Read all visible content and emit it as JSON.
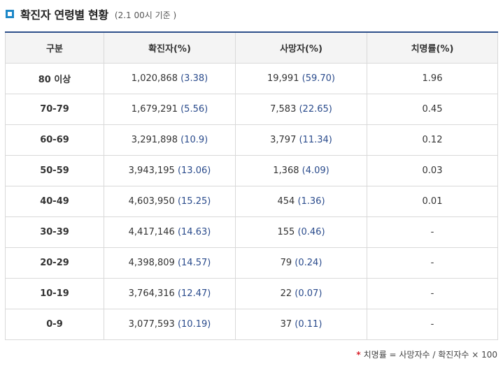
{
  "header": {
    "title": "확진자 연령별 현황",
    "subtitle": "(2.1 00시 기준 )",
    "icon": "square-bullet-icon",
    "icon_color": "#1e88c8"
  },
  "table": {
    "columns": [
      "구분",
      "확진자(%)",
      "사망자(%)",
      "치명률(%)"
    ],
    "rows": [
      {
        "age": "80 이상",
        "cases": "1,020,868",
        "cases_pct": "(3.38)",
        "deaths": "19,991",
        "deaths_pct": "(59.70)",
        "fatality": "1.96"
      },
      {
        "age": "70-79",
        "cases": "1,679,291",
        "cases_pct": "(5.56)",
        "deaths": "7,583",
        "deaths_pct": "(22.65)",
        "fatality": "0.45"
      },
      {
        "age": "60-69",
        "cases": "3,291,898",
        "cases_pct": "(10.9)",
        "deaths": "3,797",
        "deaths_pct": "(11.34)",
        "fatality": "0.12"
      },
      {
        "age": "50-59",
        "cases": "3,943,195",
        "cases_pct": "(13.06)",
        "deaths": "1,368",
        "deaths_pct": "(4.09)",
        "fatality": "0.03"
      },
      {
        "age": "40-49",
        "cases": "4,603,950",
        "cases_pct": "(15.25)",
        "deaths": "454",
        "deaths_pct": "(1.36)",
        "fatality": "0.01"
      },
      {
        "age": "30-39",
        "cases": "4,417,146",
        "cases_pct": "(14.63)",
        "deaths": "155",
        "deaths_pct": "(0.46)",
        "fatality": "-"
      },
      {
        "age": "20-29",
        "cases": "4,398,809",
        "cases_pct": "(14.57)",
        "deaths": "79",
        "deaths_pct": "(0.24)",
        "fatality": "-"
      },
      {
        "age": "10-19",
        "cases": "3,764,316",
        "cases_pct": "(12.47)",
        "deaths": "22",
        "deaths_pct": "(0.07)",
        "fatality": "-"
      },
      {
        "age": "0-9",
        "cases": "3,077,593",
        "cases_pct": "(10.19)",
        "deaths": "37",
        "deaths_pct": "(0.11)",
        "fatality": "-"
      }
    ]
  },
  "footnote": {
    "marker": "*",
    "text": "치명률 = 사망자수 / 확진자수 × 100"
  },
  "colors": {
    "accent": "#1e88c8",
    "header_border": "#2d4f8a",
    "percent_text": "#2a4b8c",
    "footnote_marker": "#d9232d"
  }
}
